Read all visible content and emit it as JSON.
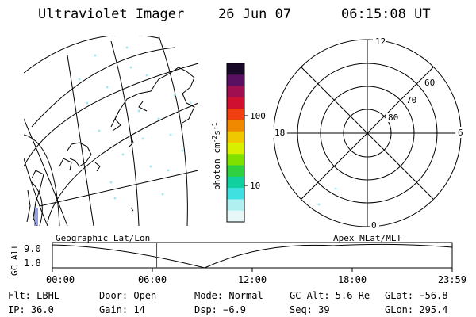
{
  "header": {
    "title": "Ultraviolet Imager",
    "date": "26 Jun 07",
    "time": "06:15:08 UT"
  },
  "colorbar": {
    "unit_main": "photon cm",
    "unit_sup1": "-2",
    "unit_mid": "s",
    "unit_sup2": "-1",
    "ticks": [
      "100",
      "10"
    ],
    "colors": [
      "#1a0a2a",
      "#5a1060",
      "#a01050",
      "#d01030",
      "#f04010",
      "#f08800",
      "#f0c800",
      "#d8f000",
      "#80e000",
      "#30d040",
      "#10d0a0",
      "#40e0e0",
      "#b0f0f0",
      "#e8f8f8"
    ]
  },
  "polar_plot": {
    "mlt_labels": {
      "top": "12",
      "left": "18",
      "right": "6",
      "bottom": "0"
    },
    "lat_labels": [
      "60",
      "70",
      "80"
    ]
  },
  "timeline": {
    "ylabel": "GC Alt",
    "y_top": "9.0",
    "y_bottom": "1.8",
    "left_caption": "Geographic Lat/Lon",
    "right_caption": "Apex MLat/MLT",
    "x_ticks": [
      "00:00",
      "06:00",
      "12:00",
      "18:00",
      "23:59"
    ],
    "current_time_fraction": 0.261
  },
  "status": {
    "row1": [
      {
        "label": "Flt:",
        "value": "LBHL"
      },
      {
        "label": "Door:",
        "value": "Open"
      },
      {
        "label": "Mode:",
        "value": "Normal"
      },
      {
        "label": "GC Alt:",
        "value": "5.6 Re"
      },
      {
        "label": "GLat:",
        "value": "−56.8"
      }
    ],
    "row2": [
      {
        "label": "IP:",
        "value": "36.0"
      },
      {
        "label": "Gain:",
        "value": "14"
      },
      {
        "label": "Dsp:",
        "value": "  −6.9"
      },
      {
        "label": "Seq:",
        "value": "39"
      },
      {
        "label": "GLon:",
        "value": "295.4"
      }
    ]
  }
}
